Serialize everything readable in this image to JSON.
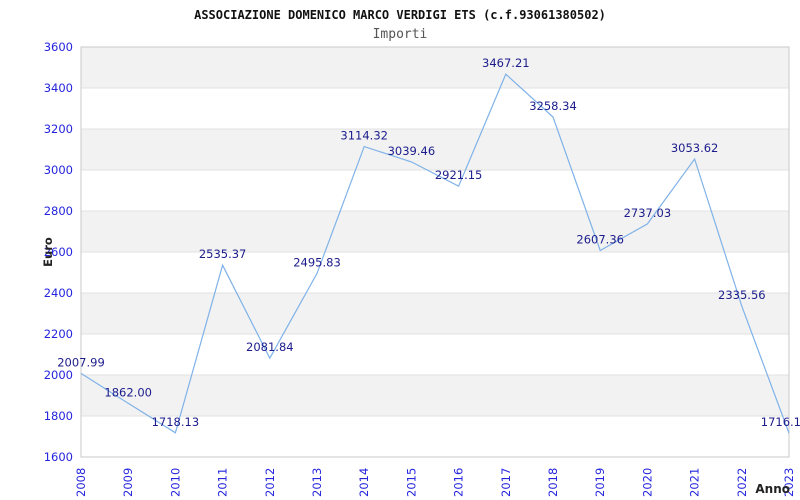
{
  "chart_data": {
    "type": "line",
    "title": "ASSOCIAZIONE DOMENICO MARCO VERDIGI ETS (c.f.93061380502)",
    "subtitle": "Importi",
    "xlabel": "Anno",
    "ylabel": "Euro",
    "categories": [
      "2008",
      "2009",
      "2010",
      "2011",
      "2012",
      "2013",
      "2014",
      "2015",
      "2016",
      "2017",
      "2018",
      "2019",
      "2020",
      "2021",
      "2022",
      "2023"
    ],
    "values": [
      2007.99,
      1862.0,
      1718.13,
      2535.37,
      2081.84,
      2495.83,
      3114.32,
      3039.46,
      2921.15,
      3467.21,
      3258.34,
      2607.36,
      2737.03,
      3053.62,
      2335.56,
      1716.1
    ],
    "point_labels": [
      "2007.99",
      "1862.00",
      "1718.13",
      "2535.37",
      "2081.84",
      "2495.83",
      "3114.32",
      "3039.46",
      "2921.15",
      "3467.21",
      "3258.34",
      "2607.36",
      "2737.03",
      "3053.62",
      "2335.56",
      "1716.1"
    ],
    "ylim": [
      1600,
      3600
    ],
    "ytick_step": 200,
    "yticks": [
      3600,
      3400,
      3200,
      3000,
      2800,
      2600,
      2400,
      2200,
      2000,
      1800,
      1600
    ],
    "grid": "horizontal-bands",
    "legend_position": "none",
    "colors": {
      "line": "#7fb2e8",
      "tick_label": "#2424dd",
      "point_label": "#1c1c8c",
      "band": "#f2f2f2",
      "band_alt": "#ffffff",
      "gridline": "#e2e2e2",
      "plot_border": "#c9c9c9",
      "title": "#111111",
      "subtitle": "#555555",
      "axis_label": "#222222",
      "background": "#ffffff"
    }
  }
}
